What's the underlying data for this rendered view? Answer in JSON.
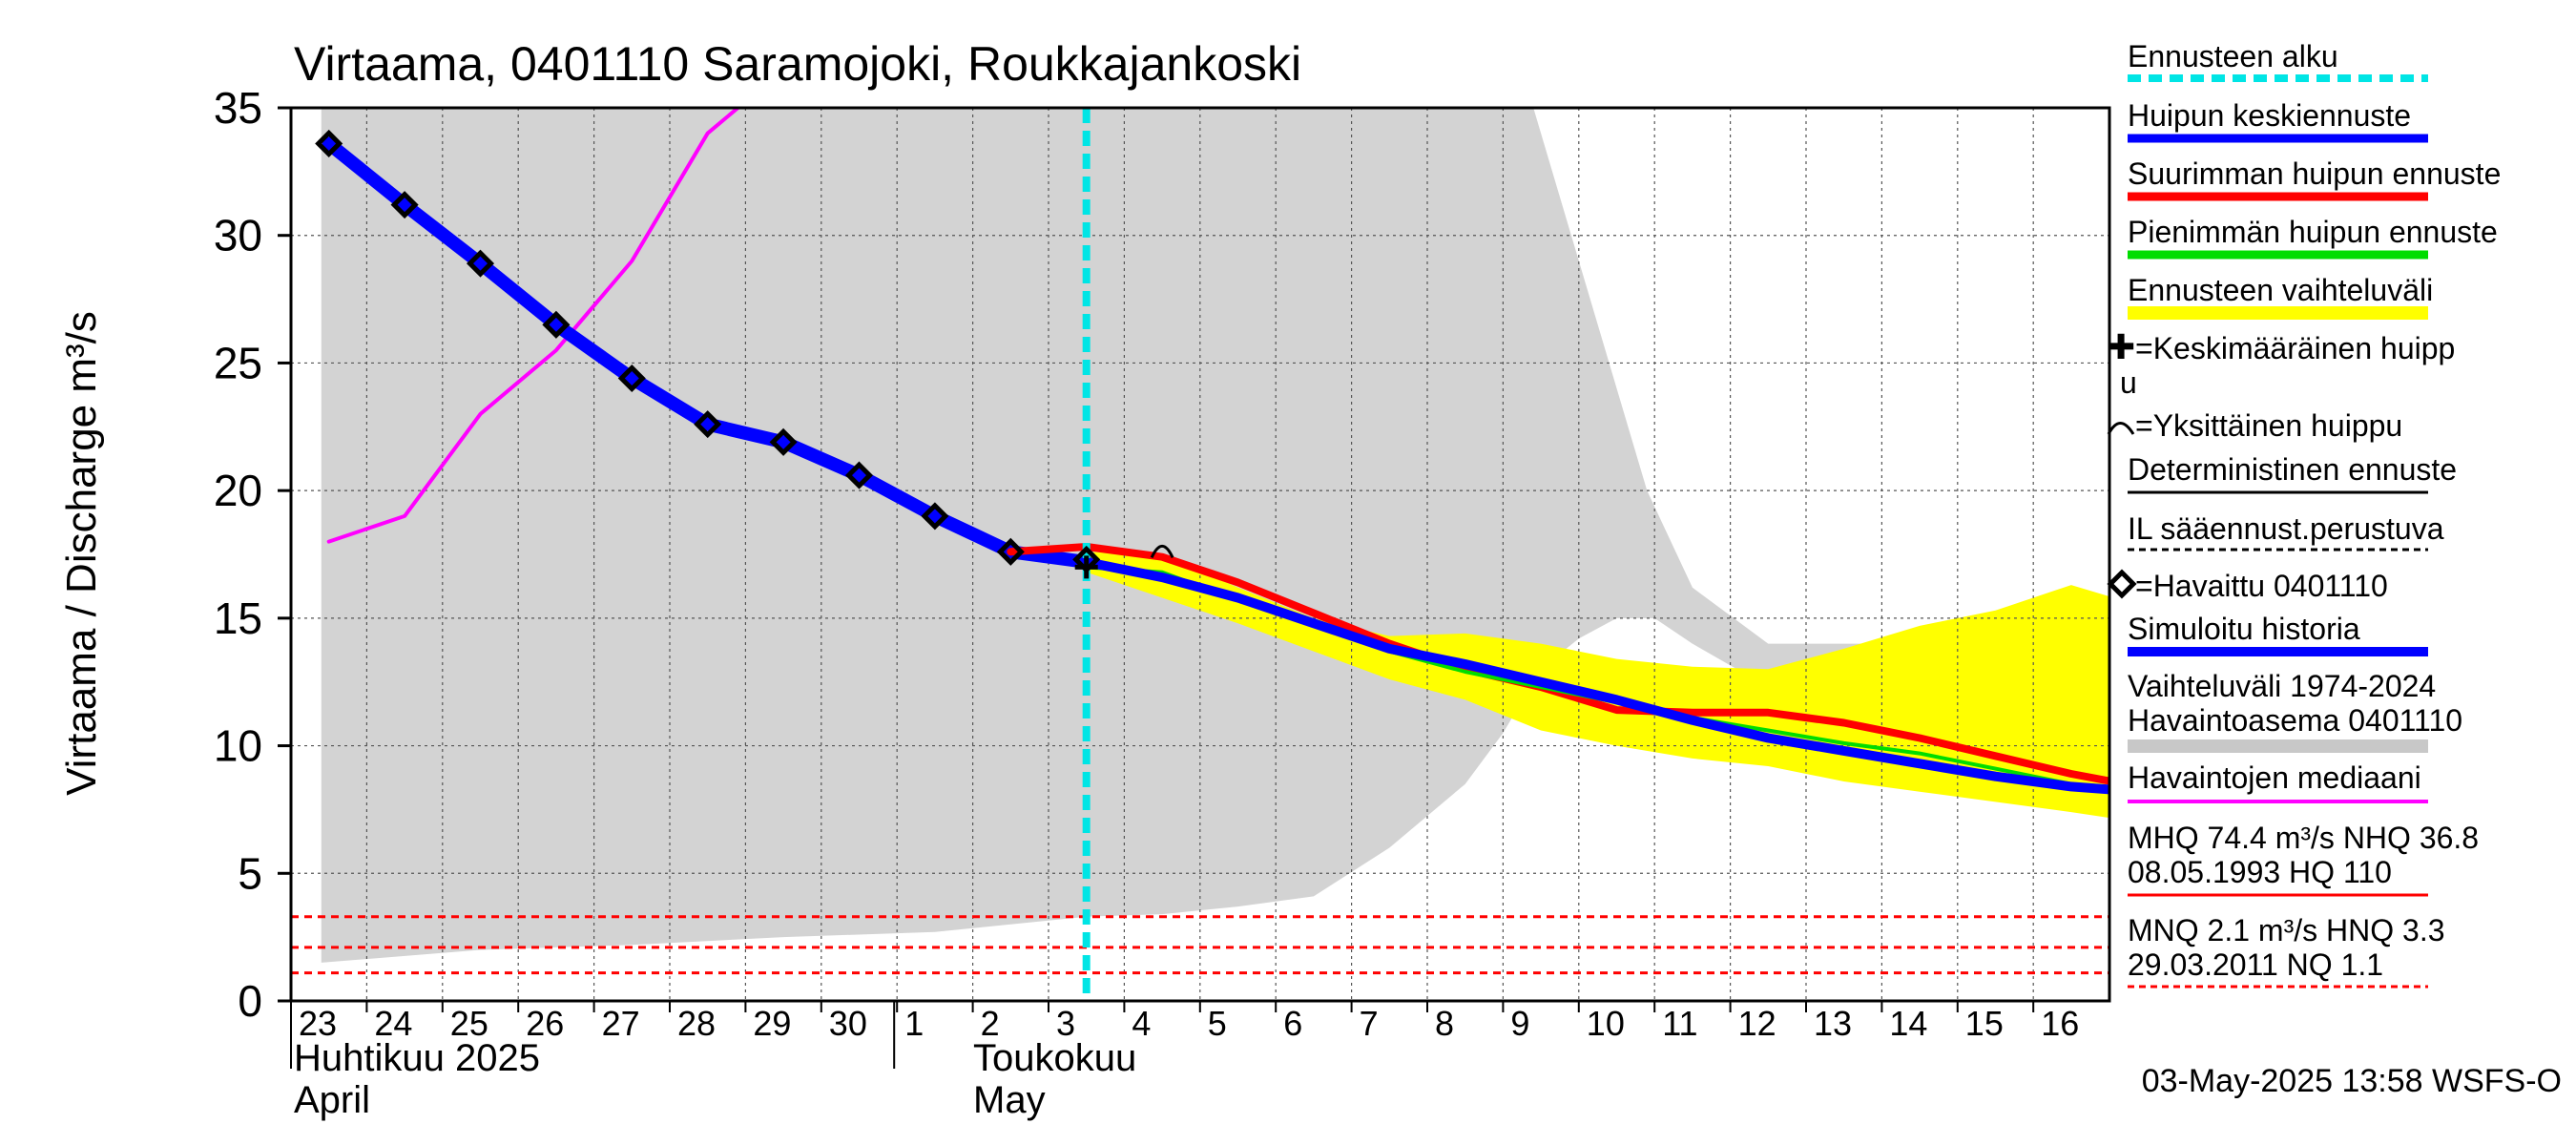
{
  "chart_data": {
    "type": "line",
    "title": "Virtaama, 0401110 Saramojoki, Roukkajankoski",
    "ylabel": "Virtaama / Discharge   m³/s",
    "ylim": [
      0,
      35
    ],
    "yticks": [
      "0",
      "5",
      "10",
      "15",
      "20",
      "25",
      "30",
      "35"
    ],
    "x_day_labels": [
      "23",
      "24",
      "25",
      "26",
      "27",
      "28",
      "29",
      "30",
      "1",
      "2",
      "3",
      "4",
      "5",
      "6",
      "7",
      "8",
      "9",
      "10",
      "11",
      "12",
      "13",
      "14",
      "15",
      "16"
    ],
    "month_labels": {
      "april_fi": "Huhtikuu  2025",
      "april_en": "April",
      "may_fi": "Toukokuu",
      "may_en": "May"
    },
    "forecast_start_day": 10,
    "history_range": {
      "upper": [
        [
          -0.1,
          35
        ],
        [
          15.9,
          35
        ],
        [
          16.4,
          30
        ],
        [
          16.9,
          25
        ],
        [
          17.4,
          20
        ],
        [
          18.0,
          16.2
        ],
        [
          19.0,
          14
        ],
        [
          20.0,
          14
        ],
        [
          21.0,
          14
        ],
        [
          22.0,
          14
        ],
        [
          23.0,
          14
        ],
        [
          23.9,
          13.9
        ]
      ],
      "lower": [
        [
          -0.1,
          1.5
        ],
        [
          2.0,
          2.0
        ],
        [
          4.0,
          2.2
        ],
        [
          6.0,
          2.5
        ],
        [
          8.0,
          2.7
        ],
        [
          9.0,
          3.0
        ],
        [
          10.0,
          3.3
        ],
        [
          11.0,
          3.4
        ],
        [
          12.0,
          3.7
        ],
        [
          13.0,
          4.1
        ],
        [
          14.0,
          6.0
        ],
        [
          15.0,
          8.5
        ],
        [
          15.5,
          10.5
        ],
        [
          16.0,
          13.0
        ],
        [
          16.5,
          14.2
        ],
        [
          17.0,
          15.0
        ],
        [
          17.5,
          15.0
        ],
        [
          18.0,
          14.0
        ],
        [
          19.0,
          12.3
        ],
        [
          20.0,
          11.3
        ],
        [
          21.0,
          10.7
        ],
        [
          22.0,
          10.4
        ],
        [
          23.0,
          10.2
        ],
        [
          23.9,
          9.9
        ]
      ]
    },
    "forecast_band": {
      "upper": [
        [
          10.0,
          17.6
        ],
        [
          11.0,
          17.5
        ],
        [
          12.0,
          16.2
        ],
        [
          13.0,
          15.0
        ],
        [
          14.0,
          14.3
        ],
        [
          15.0,
          14.4
        ],
        [
          16.0,
          14.0
        ],
        [
          17.0,
          13.4
        ],
        [
          18.0,
          13.1
        ],
        [
          19.0,
          13.0
        ],
        [
          20.0,
          13.8
        ],
        [
          21.0,
          14.7
        ],
        [
          22.0,
          15.3
        ],
        [
          23.0,
          16.3
        ],
        [
          23.9,
          15.5
        ]
      ],
      "lower": [
        [
          10.0,
          16.8
        ],
        [
          11.0,
          15.8
        ],
        [
          12.0,
          14.8
        ],
        [
          13.0,
          13.7
        ],
        [
          14.0,
          12.6
        ],
        [
          15.0,
          11.8
        ],
        [
          16.0,
          10.6
        ],
        [
          17.0,
          10.0
        ],
        [
          18.0,
          9.5
        ],
        [
          19.0,
          9.2
        ],
        [
          20.0,
          8.6
        ],
        [
          21.0,
          8.2
        ],
        [
          22.0,
          7.8
        ],
        [
          23.0,
          7.4
        ],
        [
          23.9,
          7.0
        ]
      ]
    },
    "series": [
      {
        "name": "Havaintojen mediaani",
        "color": "#ff00ff",
        "points": [
          [
            0,
            18.0
          ],
          [
            1,
            19.0
          ],
          [
            2,
            23.0
          ],
          [
            3,
            25.5
          ],
          [
            4,
            29.0
          ],
          [
            5,
            34.0
          ],
          [
            5.4,
            35.0
          ]
        ]
      },
      {
        "name": "Simuloitu historia",
        "color": "#0000ff",
        "points": [
          [
            0,
            33.6
          ],
          [
            1,
            31.2
          ],
          [
            2,
            28.9
          ],
          [
            3,
            26.5
          ],
          [
            4,
            24.4
          ],
          [
            5,
            22.6
          ],
          [
            6,
            21.9
          ],
          [
            7,
            20.6
          ],
          [
            8,
            19.0
          ],
          [
            9,
            17.6
          ],
          [
            10,
            17.2
          ]
        ]
      },
      {
        "name": "Huipun keskiennuste",
        "color": "#0000ff",
        "points": [
          [
            10,
            17.2
          ],
          [
            11,
            16.6
          ],
          [
            12,
            15.8
          ],
          [
            13,
            14.8
          ],
          [
            14,
            13.8
          ],
          [
            15,
            13.2
          ],
          [
            16,
            12.5
          ],
          [
            17,
            11.8
          ],
          [
            18,
            11.0
          ],
          [
            19,
            10.3
          ],
          [
            20,
            9.8
          ],
          [
            21,
            9.3
          ],
          [
            22,
            8.8
          ],
          [
            23,
            8.4
          ],
          [
            23.9,
            8.2
          ]
        ]
      },
      {
        "name": "Suurimman huipun ennuste",
        "color": "#ff0000",
        "points": [
          [
            9,
            17.6
          ],
          [
            10,
            17.8
          ],
          [
            11,
            17.4
          ],
          [
            12,
            16.4
          ],
          [
            13,
            15.2
          ],
          [
            14,
            14.0
          ],
          [
            15,
            13.0
          ],
          [
            16,
            12.3
          ],
          [
            17,
            11.4
          ],
          [
            18,
            11.3
          ],
          [
            19,
            11.3
          ],
          [
            20,
            10.9
          ],
          [
            21,
            10.3
          ],
          [
            22,
            9.6
          ],
          [
            23,
            8.9
          ],
          [
            23.9,
            8.4
          ]
        ]
      },
      {
        "name": "Pienimmän huipun ennuste",
        "color": "#00dd00",
        "points": [
          [
            10,
            17.0
          ],
          [
            11,
            16.8
          ],
          [
            12,
            15.7
          ],
          [
            13,
            14.8
          ],
          [
            14,
            13.7
          ],
          [
            15,
            12.9
          ],
          [
            16,
            12.3
          ],
          [
            17,
            11.7
          ],
          [
            18,
            11.1
          ],
          [
            19,
            10.6
          ],
          [
            20,
            10.1
          ],
          [
            21,
            9.7
          ],
          [
            22,
            9.1
          ],
          [
            23,
            8.5
          ],
          [
            23.9,
            8.2
          ]
        ]
      }
    ],
    "observed": {
      "name": "Havaittu 0401110",
      "points": [
        [
          0,
          33.6
        ],
        [
          1,
          31.2
        ],
        [
          2,
          28.9
        ],
        [
          3,
          26.5
        ],
        [
          4,
          24.4
        ],
        [
          5,
          22.6
        ],
        [
          6,
          21.9
        ],
        [
          7,
          20.6
        ],
        [
          8,
          19.0
        ],
        [
          9,
          17.6
        ],
        [
          10,
          17.3
        ]
      ]
    },
    "single_peak": {
      "x": 11.0,
      "y": 17.6
    },
    "mean_peak": {
      "x": 10.0,
      "y": 17.0
    },
    "reference_lines": [
      {
        "name": "HNQ",
        "value": 3.3
      },
      {
        "name": "MNQ",
        "value": 2.1
      },
      {
        "name": "NQ",
        "value": 1.1
      }
    ],
    "legend": {
      "forecast_start": "Ennusteen alku",
      "mean_forecast": "Huipun keskiennuste",
      "max_forecast": "Suurimman huipun ennuste",
      "min_forecast": "Pienimmän huipun ennuste",
      "forecast_range": "Ennusteen vaihteluväli",
      "mean_peak_line1": "=Keskimääräinen huipp",
      "mean_peak_line2": "u",
      "single_peak": "=Yksittäinen huippu",
      "deterministic": "Deterministinen ennuste",
      "il_forecast": "IL sääennust.perustuva",
      "observed": "=Havaittu 0401110",
      "simulated": "Simuloitu historia",
      "range_hist_line1": "Vaihteluväli 1974-2024",
      "range_hist_line2": " Havaintoasema 0401110",
      "median": "Havaintojen mediaani",
      "mhq_line1": "MHQ 74.4 m³/s NHQ 36.8",
      "mhq_line2": "08.05.1993 HQ  110",
      "mnq_line1": "MNQ  2.1 m³/s HNQ  3.3",
      "mnq_line2": "29.03.2011 NQ  1.1"
    },
    "colors": {
      "forecast_start": "#00e5e5",
      "history_band": "#d3d3d3",
      "forecast_band": "#ffff00",
      "deterministic": "#000000",
      "reference": "#ff0000",
      "history_legend": "#c8c8c8"
    },
    "footer": "03-May-2025 13:58 WSFS-O"
  }
}
